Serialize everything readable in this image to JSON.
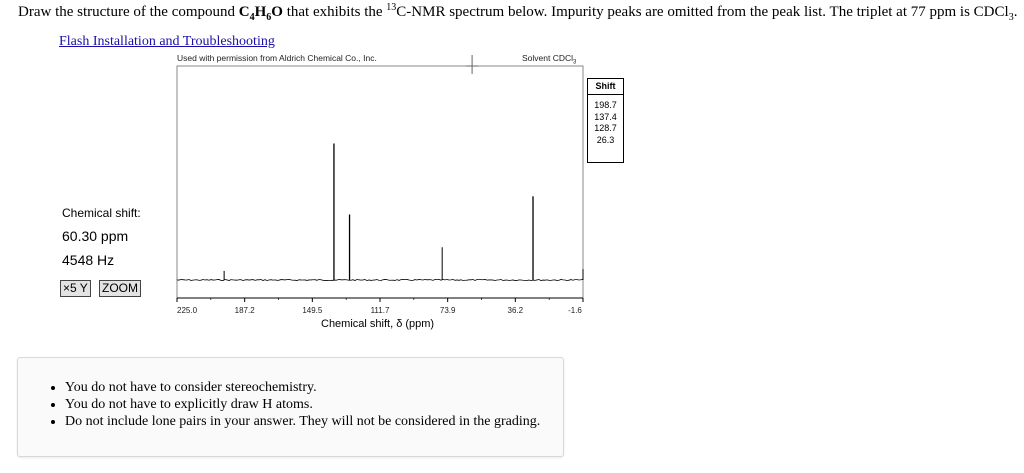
{
  "question": {
    "part1": "Draw the structure of the compound ",
    "formula_c": "C",
    "formula_c_sub": "4",
    "formula_h": "H",
    "formula_h_sub": "6",
    "formula_o": "O",
    "part2": " that exhibits the ",
    "nmr_sup": "13",
    "part3": "C-NMR spectrum below. Impurity peaks are omitted from the peak list. The triplet at 77 ppm is CDCl",
    "cdcl_sub": "3",
    "part4": "."
  },
  "flash_link": "Flash Installation and Troubleshooting",
  "spectrum": {
    "permission": "Used with permission from Aldrich Chemical Co., Inc.",
    "solvent_prefix": "Solvent CDCl",
    "solvent_sub": "3"
  },
  "shift_table": {
    "header": "Shift",
    "values": [
      "198.7",
      "137.4",
      "128.7",
      "26.3"
    ]
  },
  "chemical_shift": {
    "label": "Chemical shift:",
    "ppm": "60.30 ppm",
    "hz": "4548 Hz"
  },
  "buttons": {
    "x5y": "×5 Y",
    "zoom": "ZOOM"
  },
  "notes": [
    "You do not have to consider stereochemistry.",
    "You do not have to explicitly draw H atoms.",
    "Do not include lone pairs in your answer. They will not be considered in the grading."
  ],
  "chart_data": {
    "type": "line",
    "xlabel": "Chemical shift, δ (ppm)",
    "x_ticks": [
      "225.0",
      "187.2",
      "149.5",
      "111.7",
      "73.9",
      "36.2",
      "-1.6"
    ],
    "xlim": [
      225.0,
      -1.6
    ],
    "cursor_ppm": 60.3,
    "peaks": [
      {
        "ppm": 198.7,
        "height": 0.05
      },
      {
        "ppm": 137.4,
        "height": 0.75
      },
      {
        "ppm": 128.7,
        "height": 0.36
      },
      {
        "ppm": 77.0,
        "height": 0.18
      },
      {
        "ppm": 26.3,
        "height": 0.46
      },
      {
        "ppm": -1.6,
        "height": 0.06
      }
    ]
  },
  "colors": {
    "link": "#1a0dab",
    "trace": "#000000"
  }
}
